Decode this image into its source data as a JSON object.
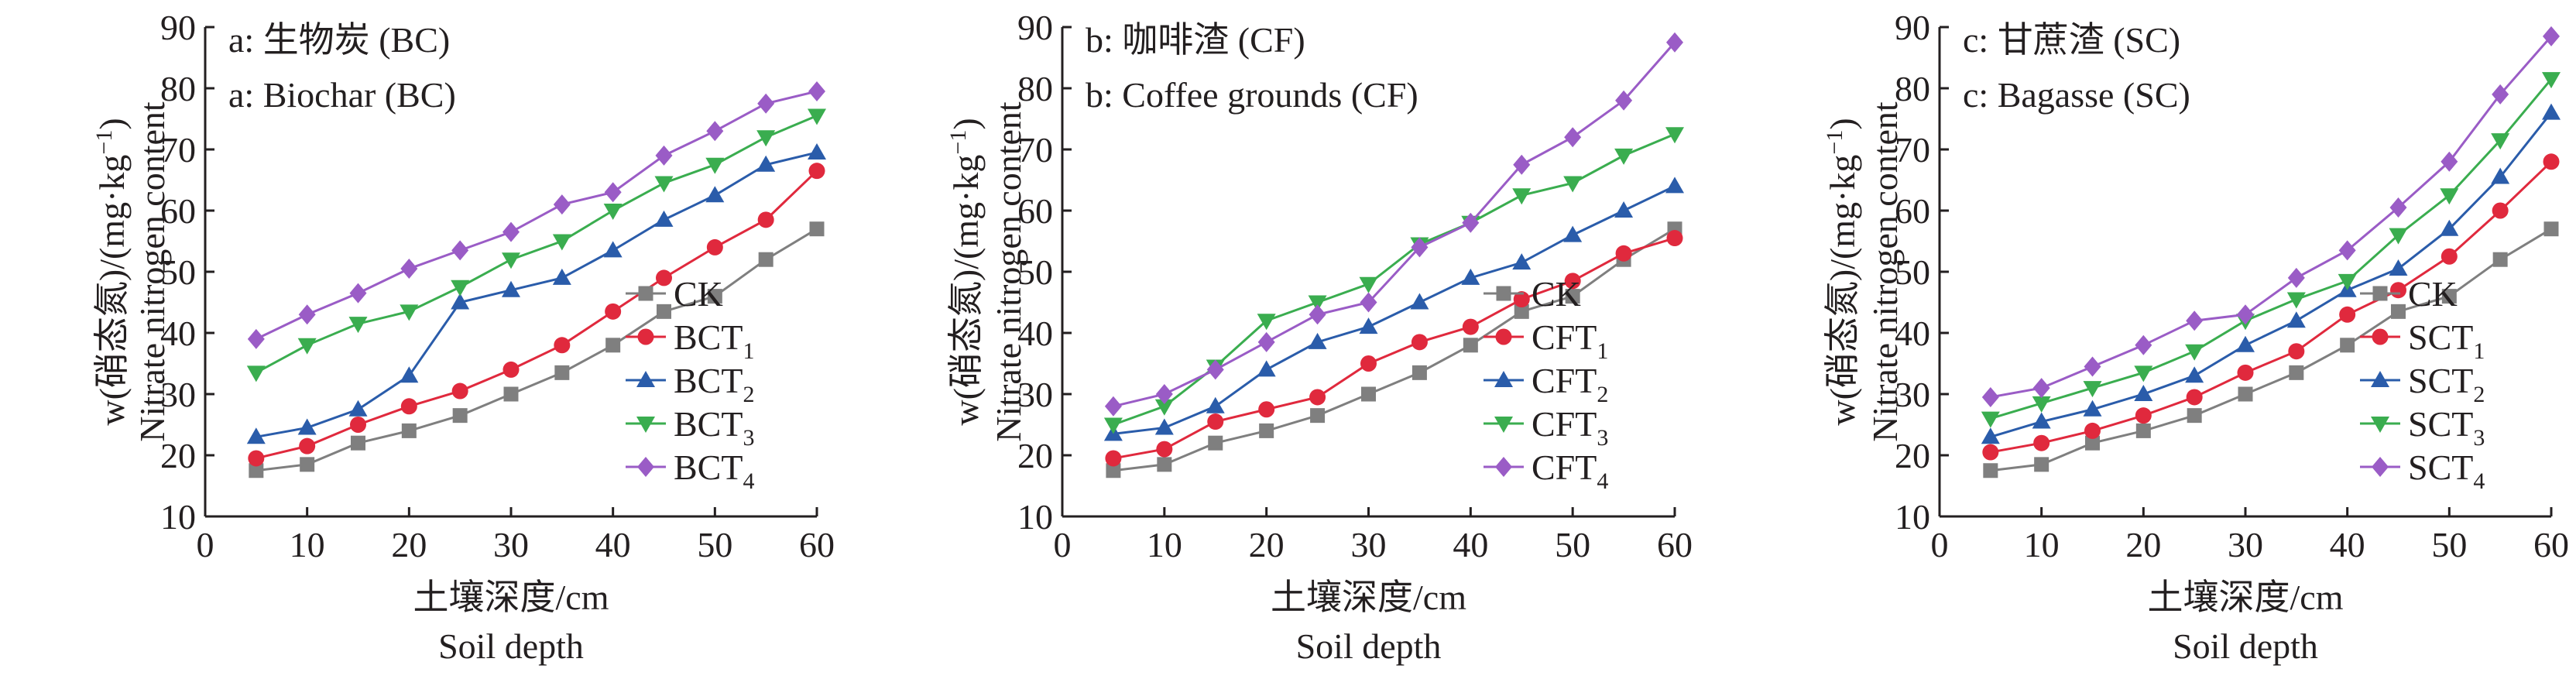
{
  "chart_data": [
    {
      "type": "line",
      "panel_label_cn": "a: 生物炭 (BC)",
      "panel_label_en": "a: Biochar (BC)",
      "xlabel_cn": "土壤深度/cm",
      "xlabel_en": "Soil depth",
      "ylabel_cn": "w(硝态氮)/(mg·kg",
      "ylabel_sup": "−1",
      "ylabel_close": ")",
      "ylabel_en": "Nitrate nitrogen content",
      "xlim": [
        0,
        60
      ],
      "ylim": [
        10,
        90
      ],
      "xticks": [
        0,
        10,
        20,
        30,
        40,
        50,
        60
      ],
      "yticks": [
        10,
        20,
        30,
        40,
        50,
        60,
        70,
        80,
        90
      ],
      "legend_position": "bottom-right",
      "x": [
        5,
        10,
        15,
        20,
        25,
        30,
        35,
        40,
        45,
        50,
        55,
        60
      ],
      "series": [
        {
          "name": "CK",
          "sub": "",
          "color": "#7f7f7f",
          "marker": "square",
          "values": [
            17.5,
            18.5,
            22,
            24,
            26.5,
            30,
            33.5,
            38,
            43.5,
            46,
            52,
            57
          ]
        },
        {
          "name": "BCT",
          "sub": "1",
          "color": "#e0293d",
          "marker": "circle",
          "values": [
            19.5,
            21.5,
            25,
            28,
            30.5,
            34,
            38,
            43.5,
            49,
            54,
            58.5,
            66.5
          ]
        },
        {
          "name": "BCT",
          "sub": "2",
          "color": "#2a5caa",
          "marker": "triangle",
          "values": [
            23,
            24.5,
            27.5,
            33,
            45,
            47,
            49,
            53.5,
            58.5,
            62.5,
            67.5,
            69.5
          ]
        },
        {
          "name": "BCT",
          "sub": "3",
          "color": "#3aad4f",
          "marker": "triangle-down",
          "values": [
            33.5,
            38,
            41.5,
            43.5,
            47.5,
            52,
            55,
            60,
            64.5,
            67.5,
            72,
            75.5
          ]
        },
        {
          "name": "BCT",
          "sub": "4",
          "color": "#9a5cc6",
          "marker": "diamond",
          "values": [
            39,
            43,
            46.5,
            50.5,
            53.5,
            56.5,
            61,
            63,
            69,
            73,
            77.5,
            79.5
          ]
        }
      ]
    },
    {
      "type": "line",
      "panel_label_cn": "b: 咖啡渣 (CF)",
      "panel_label_en": "b: Coffee grounds (CF)",
      "xlabel_cn": "土壤深度/cm",
      "xlabel_en": "Soil depth",
      "ylabel_cn": "w(硝态氮)/(mg·kg",
      "ylabel_sup": "−1",
      "ylabel_close": ")",
      "ylabel_en": "Nitrate nitrogen content",
      "xlim": [
        0,
        60
      ],
      "ylim": [
        10,
        90
      ],
      "xticks": [
        0,
        10,
        20,
        30,
        40,
        50,
        60
      ],
      "yticks": [
        10,
        20,
        30,
        40,
        50,
        60,
        70,
        80,
        90
      ],
      "legend_position": "bottom-right",
      "x": [
        5,
        10,
        15,
        20,
        25,
        30,
        35,
        40,
        45,
        50,
        55,
        60
      ],
      "series": [
        {
          "name": "CK",
          "sub": "",
          "color": "#7f7f7f",
          "marker": "square",
          "values": [
            17.5,
            18.5,
            22,
            24,
            26.5,
            30,
            33.5,
            38,
            43.5,
            46,
            52,
            57
          ]
        },
        {
          "name": "CFT",
          "sub": "1",
          "color": "#e0293d",
          "marker": "circle",
          "values": [
            19.5,
            21,
            25.5,
            27.5,
            29.5,
            35,
            38.5,
            41,
            45.5,
            48.5,
            53,
            55.5
          ]
        },
        {
          "name": "CFT",
          "sub": "2",
          "color": "#2a5caa",
          "marker": "triangle",
          "values": [
            23.5,
            24.5,
            28,
            34,
            38.5,
            41,
            45,
            49,
            51.5,
            56,
            60,
            64
          ]
        },
        {
          "name": "CFT",
          "sub": "3",
          "color": "#3aad4f",
          "marker": "triangle-down",
          "values": [
            25,
            28,
            34.5,
            42,
            45,
            48,
            54.5,
            58,
            62.5,
            64.5,
            69,
            72.5
          ]
        },
        {
          "name": "CFT",
          "sub": "4",
          "color": "#9a5cc6",
          "marker": "diamond",
          "values": [
            28,
            30,
            34,
            38.5,
            43,
            45,
            54,
            58,
            67.5,
            72,
            78,
            87.5
          ]
        }
      ]
    },
    {
      "type": "line",
      "panel_label_cn": "c: 甘蔗渣 (SC)",
      "panel_label_en": "c: Bagasse (SC)",
      "xlabel_cn": "土壤深度/cm",
      "xlabel_en": "Soil depth",
      "ylabel_cn": "w(硝态氮)/(mg·kg",
      "ylabel_sup": "−1",
      "ylabel_close": ")",
      "ylabel_en": "Nitrate nitrogen content",
      "xlim": [
        0,
        60
      ],
      "ylim": [
        10,
        90
      ],
      "xticks": [
        0,
        10,
        20,
        30,
        40,
        50,
        60
      ],
      "yticks": [
        10,
        20,
        30,
        40,
        50,
        60,
        70,
        80,
        90
      ],
      "legend_position": "bottom-right",
      "x": [
        5,
        10,
        15,
        20,
        25,
        30,
        35,
        40,
        45,
        50,
        55,
        60
      ],
      "series": [
        {
          "name": "CK",
          "sub": "",
          "color": "#7f7f7f",
          "marker": "square",
          "values": [
            17.5,
            18.5,
            22,
            24,
            26.5,
            30,
            33.5,
            38,
            43.5,
            46,
            52,
            57
          ]
        },
        {
          "name": "SCT",
          "sub": "1",
          "color": "#e0293d",
          "marker": "circle",
          "values": [
            20.5,
            22,
            24,
            26.5,
            29.5,
            33.5,
            37,
            43,
            47,
            52.5,
            60,
            68
          ]
        },
        {
          "name": "SCT",
          "sub": "2",
          "color": "#2a5caa",
          "marker": "triangle",
          "values": [
            23,
            25.5,
            27.5,
            30,
            33,
            38,
            42,
            47,
            50.5,
            57,
            65.5,
            76
          ]
        },
        {
          "name": "SCT",
          "sub": "3",
          "color": "#3aad4f",
          "marker": "triangle-down",
          "values": [
            26,
            28.5,
            31,
            33.5,
            37,
            42,
            45.5,
            48.5,
            56,
            62.5,
            71.5,
            81.5
          ]
        },
        {
          "name": "SCT",
          "sub": "4",
          "color": "#9a5cc6",
          "marker": "diamond",
          "values": [
            29.5,
            31,
            34.5,
            38,
            42,
            43,
            49,
            53.5,
            60.5,
            68,
            79,
            88.5
          ]
        }
      ]
    }
  ]
}
